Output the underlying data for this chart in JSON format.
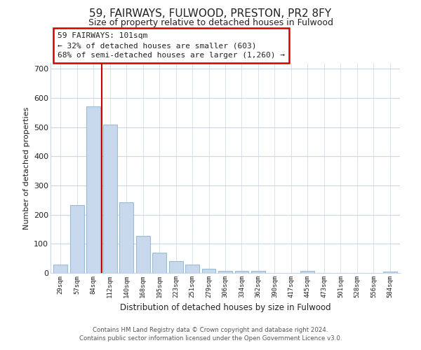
{
  "title": "59, FAIRWAYS, FULWOOD, PRESTON, PR2 8FY",
  "subtitle": "Size of property relative to detached houses in Fulwood",
  "xlabel": "Distribution of detached houses by size in Fulwood",
  "ylabel": "Number of detached properties",
  "bar_labels": [
    "29sqm",
    "57sqm",
    "84sqm",
    "112sqm",
    "140sqm",
    "168sqm",
    "195sqm",
    "223sqm",
    "251sqm",
    "279sqm",
    "306sqm",
    "334sqm",
    "362sqm",
    "390sqm",
    "417sqm",
    "445sqm",
    "473sqm",
    "501sqm",
    "528sqm",
    "556sqm",
    "584sqm"
  ],
  "bar_values": [
    28,
    232,
    571,
    510,
    242,
    127,
    70,
    42,
    28,
    14,
    8,
    8,
    8,
    0,
    0,
    8,
    0,
    0,
    0,
    0,
    5
  ],
  "bar_color": "#c8d8ed",
  "bar_edge_color": "#9bbcd6",
  "highlight_line_color": "#cc0000",
  "highlight_line_index": 2.5,
  "ylim": [
    0,
    720
  ],
  "yticks": [
    0,
    100,
    200,
    300,
    400,
    500,
    600,
    700
  ],
  "annotation_line1": "59 FAIRWAYS: 101sqm",
  "annotation_line2": "← 32% of detached houses are smaller (603)",
  "annotation_line3": "68% of semi-detached houses are larger (1,260) →",
  "annotation_box_color": "#ffffff",
  "annotation_box_edge": "#cc0000",
  "footer_line1": "Contains HM Land Registry data © Crown copyright and database right 2024.",
  "footer_line2": "Contains public sector information licensed under the Open Government Licence v3.0.",
  "bg_color": "#ffffff",
  "grid_color": "#c8d8e8"
}
